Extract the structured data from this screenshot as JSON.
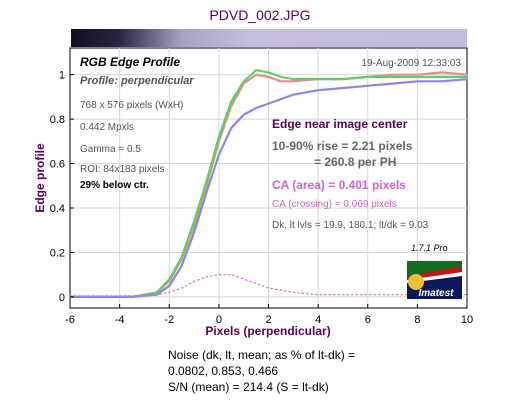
{
  "header": {
    "file_title": "PDVD_002.JPG"
  },
  "plot": {
    "title": "RGB Edge Profile",
    "subtitle": "Profile: perpendicular",
    "date": "19-Aug-2009 12:33:03",
    "info_lines": [
      "768 x 576 pixels (WxH)",
      "0.442 Mpxls",
      "Gamma = 0.5",
      "ROI: 84x183 pixels"
    ],
    "info_bold": "29% below ctr.",
    "edge_heading": "Edge near image center",
    "rise_line1": "10-90% rise = 2.21 pixels",
    "rise_line2": "= 260.8 per PH",
    "ca_area": "CA (area) = 0.401 pixels",
    "ca_crossing": "CA (crossing) = 0.069 pixels",
    "dk_line": "Dk, lt lvls = 19.9, 180.1;  lt/dk = 9.03",
    "version": "1.7.1  Pro",
    "logo_text": "Imatest"
  },
  "chart_data": {
    "type": "line",
    "title": "RGB Edge Profile",
    "subtitle": "Profile: perpendicular",
    "xlabel": "Pixels (perpendicular)",
    "ylabel": "Edge profile",
    "xlim": [
      -6,
      10
    ],
    "ylim": [
      -0.05,
      1.12
    ],
    "x_ticks": [
      -6,
      -4,
      -2,
      0,
      2,
      4,
      6,
      8,
      10
    ],
    "y_ticks": [
      0,
      0.2,
      0.4,
      0.6,
      0.8,
      1
    ],
    "grid": true,
    "series": [
      {
        "color": "#e09090",
        "style": "solid",
        "x": [
          -6,
          -3.5,
          -2.5,
          -2.0,
          -1.5,
          -1.0,
          -0.5,
          0.0,
          0.5,
          1.0,
          1.5,
          2.0,
          2.5,
          3.0,
          4.0,
          5.0,
          6.0,
          7.0,
          8.0,
          9.0,
          10.0
        ],
        "y": [
          0.0,
          0.0,
          0.02,
          0.07,
          0.17,
          0.32,
          0.5,
          0.7,
          0.86,
          0.96,
          1.0,
          0.99,
          0.97,
          0.97,
          0.98,
          0.98,
          0.99,
          1.0,
          1.0,
          1.01,
          1.0
        ]
      },
      {
        "color": "#60d060",
        "style": "solid",
        "x": [
          -6,
          -3.5,
          -2.5,
          -2.0,
          -1.5,
          -1.0,
          -0.5,
          0.0,
          0.5,
          1.0,
          1.5,
          2.0,
          2.5,
          3.0,
          4.0,
          5.0,
          6.0,
          7.0,
          8.0,
          9.0,
          10.0
        ],
        "y": [
          0.0,
          0.0,
          0.02,
          0.08,
          0.18,
          0.34,
          0.52,
          0.72,
          0.88,
          0.97,
          1.02,
          1.01,
          0.99,
          0.98,
          0.98,
          0.98,
          0.99,
          0.99,
          0.99,
          0.99,
          0.99
        ]
      },
      {
        "color": "#8888e8",
        "style": "solid",
        "x": [
          -6,
          -3.5,
          -2.5,
          -2.0,
          -1.5,
          -1.0,
          -0.5,
          0.0,
          0.5,
          1.0,
          1.5,
          2.0,
          2.5,
          3.0,
          4.0,
          5.0,
          6.0,
          7.0,
          8.0,
          9.0,
          10.0
        ],
        "y": [
          0.0,
          0.0,
          0.01,
          0.05,
          0.14,
          0.29,
          0.47,
          0.64,
          0.76,
          0.82,
          0.85,
          0.87,
          0.89,
          0.91,
          0.93,
          0.94,
          0.95,
          0.96,
          0.97,
          0.97,
          0.98
        ]
      },
      {
        "color": "#d070d0",
        "style": "dotted",
        "x": [
          -6,
          -4,
          -3,
          -2.5,
          -2.0,
          -1.5,
          -1.0,
          -0.5,
          0.0,
          0.5,
          1.0,
          1.5,
          2.0,
          3.0,
          4.0,
          5.0,
          6.0,
          7.0,
          8.0,
          9.0,
          10.0
        ],
        "y": [
          0.005,
          0.005,
          0.005,
          0.01,
          0.02,
          0.04,
          0.07,
          0.09,
          0.1,
          0.1,
          0.08,
          0.06,
          0.04,
          0.02,
          0.01,
          0.01,
          0.01,
          0.01,
          0.01,
          0.01,
          0.01
        ]
      }
    ]
  },
  "noise": {
    "line1": "Noise (dk, lt, mean; as % of lt-dk) =",
    "line2": "0.0802,  0.853,  0.466",
    "line3": "S/N (mean) = 214.4  (S = lt-dk)"
  }
}
